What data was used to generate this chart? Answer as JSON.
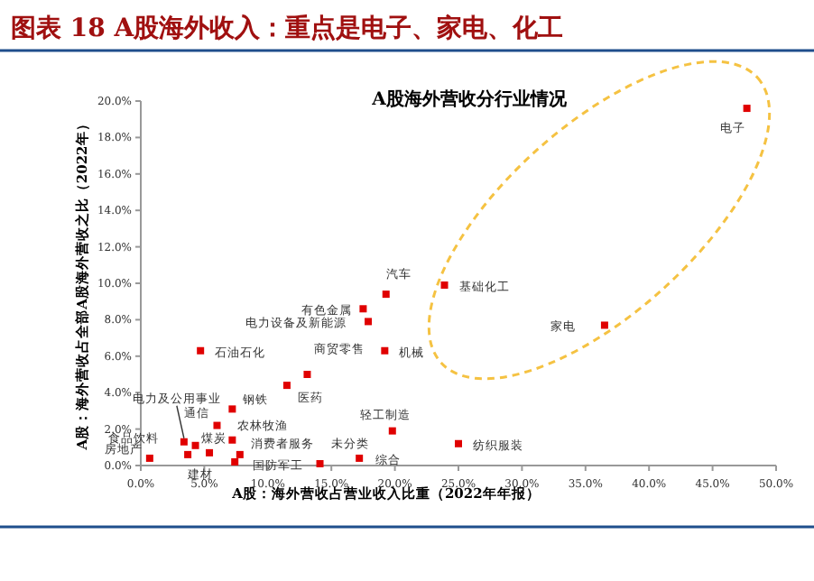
{
  "chart_data": {
    "type": "scatter",
    "title": "图表 18  A股海外收入：重点是电子、家电、化工",
    "subtitle": "A股海外营收分行业情况",
    "xlabel": "A股：海外营收占营业收入比重（2022年年报）",
    "ylabel": "A股：海外营收占全部A股海外营收之比（2022年）",
    "x": [
      47.7,
      23.9,
      36.5,
      19.3,
      17.5,
      17.9,
      19.2,
      4.7,
      13.1,
      11.5,
      7.2,
      6.0,
      3.4,
      7.2,
      3.7,
      4.3,
      5.4,
      7.8,
      7.4,
      0.7,
      14.1,
      17.2,
      19.8,
      25.0
    ],
    "values": [
      19.6,
      9.9,
      7.7,
      9.4,
      8.6,
      7.9,
      6.3,
      6.3,
      5.0,
      4.4,
      3.1,
      2.2,
      1.3,
      1.4,
      0.6,
      1.1,
      0.7,
      0.6,
      0.2,
      0.4,
      0.1,
      0.4,
      1.9,
      1.2
    ],
    "color": "#e00000",
    "marker": "square",
    "xlim": [
      0,
      50
    ],
    "ylim": [
      0,
      20
    ],
    "xticks": [
      {
        "value": 0,
        "label": "0.0%"
      },
      {
        "value": 5,
        "label": "5.0%"
      },
      {
        "value": 10,
        "label": "10.0%"
      },
      {
        "value": 15,
        "label": "15.0%"
      },
      {
        "value": 20,
        "label": "20.0%"
      },
      {
        "value": 25,
        "label": "25.0%"
      },
      {
        "value": 30,
        "label": "30.0%"
      },
      {
        "value": 35,
        "label": "35.0%"
      },
      {
        "value": 40,
        "label": "40.0%"
      },
      {
        "value": 45,
        "label": "45.0%"
      },
      {
        "value": 50,
        "label": "50.0%"
      }
    ],
    "yticks": [
      {
        "value": 0,
        "label": "0.0%"
      },
      {
        "value": 2,
        "label": "2.0%"
      },
      {
        "value": 4,
        "label": "4.0%"
      },
      {
        "value": 6,
        "label": "6.0%"
      },
      {
        "value": 8,
        "label": "8.0%"
      },
      {
        "value": 10,
        "label": "10.0%"
      },
      {
        "value": 12,
        "label": "12.0%"
      },
      {
        "value": 14,
        "label": "14.0%"
      },
      {
        "value": 16,
        "label": "16.0%"
      },
      {
        "value": 18,
        "label": "18.0%"
      },
      {
        "value": 20,
        "label": "20.0%"
      }
    ],
    "annotations": [
      {
        "text": "电子",
        "x": 47.7,
        "y": 19.6
      },
      {
        "text": "基础化工",
        "x": 23.9,
        "y": 9.9
      },
      {
        "text": "家电",
        "x": 36.5,
        "y": 7.7
      },
      {
        "text": "汽车",
        "x": 19.3,
        "y": 9.4
      },
      {
        "text": "有色金属",
        "x": 17.5,
        "y": 8.6
      },
      {
        "text": "电力设备及新能源",
        "x": 17.9,
        "y": 7.9
      },
      {
        "text": "机械",
        "x": 19.2,
        "y": 6.3
      },
      {
        "text": "石油石化",
        "x": 4.7,
        "y": 6.3
      },
      {
        "text": "商贸零售",
        "x": 13.1,
        "y": 5.0
      },
      {
        "text": "医药",
        "x": 11.5,
        "y": 4.4
      },
      {
        "text": "钢铁",
        "x": 7.2,
        "y": 3.1
      },
      {
        "text": "通信",
        "x": 6.0,
        "y": 2.2
      },
      {
        "text": "电力及公用事业",
        "x": 3.4,
        "y": 1.3
      },
      {
        "text": "农林牧渔",
        "x": 7.2,
        "y": 1.4
      },
      {
        "text": "食品饮料",
        "x": 3.7,
        "y": 0.6
      },
      {
        "text": "煤炭",
        "x": 4.3,
        "y": 1.1
      },
      {
        "text": "建材",
        "x": 5.4,
        "y": 0.7
      },
      {
        "text": "消费者服务",
        "x": 7.8,
        "y": 0.6
      },
      {
        "text": "国防军工",
        "x": 7.4,
        "y": 0.2
      },
      {
        "text": "房地产",
        "x": 0.7,
        "y": 0.4
      },
      {
        "text": "未分类",
        "x": 14.1,
        "y": 0.1
      },
      {
        "text": "综合",
        "x": 17.2,
        "y": 0.4
      },
      {
        "text": "轻工制造",
        "x": 19.8,
        "y": 1.9
      },
      {
        "text": "纺织服装",
        "x": 25.0,
        "y": 1.2
      }
    ]
  }
}
